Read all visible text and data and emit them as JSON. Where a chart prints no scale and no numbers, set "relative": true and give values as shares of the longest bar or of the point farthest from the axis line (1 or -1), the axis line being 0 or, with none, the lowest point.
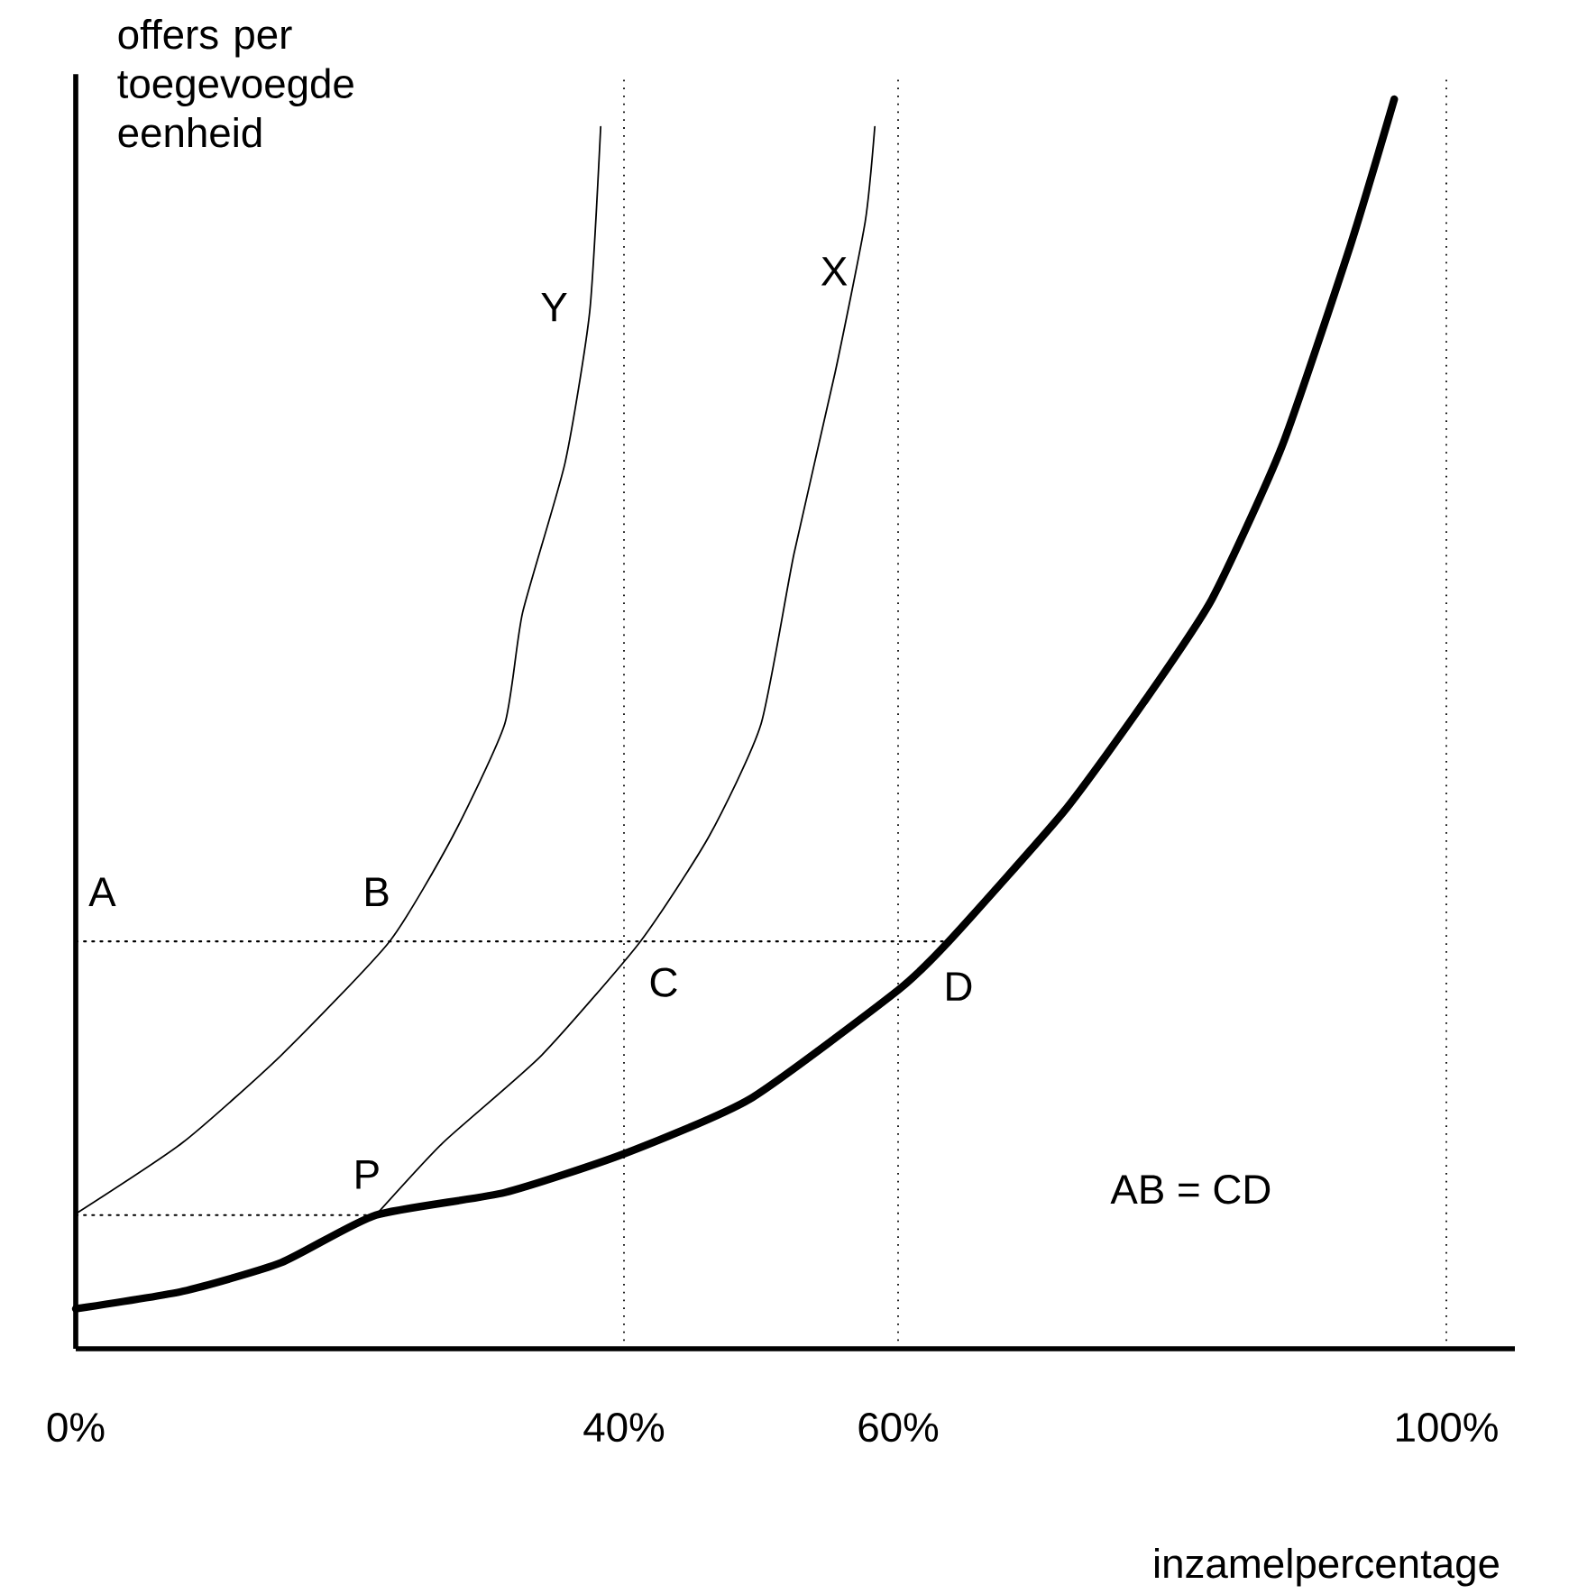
{
  "chart_data": {
    "type": "line",
    "relative": true,
    "xlabel": "inzamelpercentage",
    "ylabel": "offers per toegevoegde eenheid",
    "xlim": [
      0,
      105
    ],
    "xticks": [
      {
        "value": 0,
        "label": "0%"
      },
      {
        "value": 40,
        "label": "40%"
      },
      {
        "value": 60,
        "label": "60%"
      },
      {
        "value": 100,
        "label": "100%"
      }
    ],
    "tick_labels": "x",
    "grid": false,
    "series": [
      {
        "color": "#000000",
        "x": [
          0,
          7.8,
          15,
          21.9,
          31.3,
          40,
          49.2,
          60,
          63.7,
          72.1,
          77.9,
          82.9,
          88,
          93,
          96.2
        ],
        "values": [
          0.032,
          0.046,
          0.069,
          0.107,
          0.125,
          0.156,
          0.2,
          0.287,
          0.326,
          0.43,
          0.517,
          0.6,
          0.722,
          0.883,
          1.0
        ]
      },
      {
        "color": "#000000",
        "x": [
          0,
          7.8,
          15,
          22.9,
          27.5,
          31.3,
          32.6,
          35.7,
          37.5,
          38.3
        ],
        "values": [
          0.108,
          0.165,
          0.235,
          0.326,
          0.41,
          0.5,
          0.589,
          0.709,
          0.83,
          0.978
        ]
      },
      {
        "color": "#000000",
        "x": [
          21.9,
          26.8,
          34,
          41.2,
          46.2,
          50,
          52.4,
          55.4,
          57.6,
          58.3
        ],
        "values": [
          0.107,
          0.165,
          0.235,
          0.326,
          0.41,
          0.5,
          0.636,
          0.781,
          0.902,
          0.978
        ]
      },
      {
        "color": "#000000",
        "line_style": "dotted",
        "x": [
          0,
          63.7
        ],
        "values": [
          0.326,
          0.326
        ]
      },
      {
        "color": "#000000",
        "line_style": "dotted",
        "x": [
          0,
          21.9
        ],
        "values": [
          0.107,
          0.107
        ]
      }
    ],
    "ref_lines": [
      {
        "axis": "x",
        "value": 40,
        "line_style": "dotted"
      },
      {
        "axis": "x",
        "value": 60,
        "line_style": "dotted"
      },
      {
        "axis": "x",
        "value": 100,
        "line_style": "dotted"
      }
    ],
    "annotations": [
      {
        "text": "A",
        "x": 0,
        "y": 0.326
      },
      {
        "text": "B",
        "x": 22.9,
        "y": 0.326
      },
      {
        "text": "C",
        "x": 41.2,
        "y": 0.326
      },
      {
        "text": "D",
        "x": 63.7,
        "y": 0.326
      },
      {
        "text": "P",
        "x": 21.9,
        "y": 0.107
      },
      {
        "text": "Y",
        "x": 37.5,
        "y": 0.83
      },
      {
        "text": "X",
        "x": 57.6,
        "y": 0.902
      },
      "AB = CD"
    ]
  }
}
